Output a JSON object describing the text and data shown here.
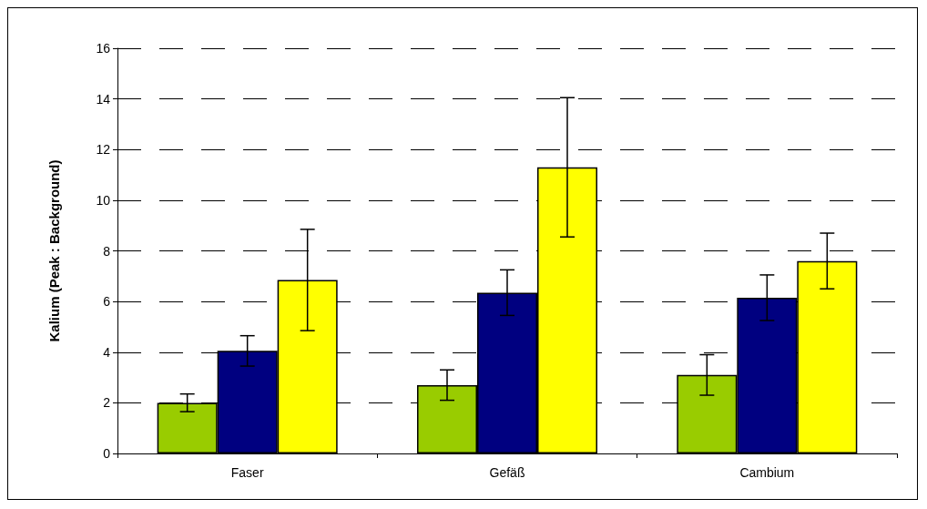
{
  "chart_data": {
    "type": "bar",
    "ylabel": "Kalium (Peak : Background)",
    "categories": [
      "Faser",
      "Gefäß",
      "Cambium"
    ],
    "series": [
      {
        "color": "#99cc00",
        "values": [
          2.0,
          2.7,
          3.1
        ],
        "errors": [
          0.35,
          0.6,
          0.8
        ]
      },
      {
        "color": "#000080",
        "values": [
          4.05,
          6.35,
          6.15
        ],
        "errors": [
          0.6,
          0.9,
          0.9
        ]
      },
      {
        "color": "#ffff00",
        "values": [
          6.85,
          11.3,
          7.6
        ],
        "errors": [
          2.0,
          2.75,
          1.1
        ]
      }
    ],
    "ylim": [
      0,
      16
    ],
    "yticks": [
      0,
      2,
      4,
      6,
      8,
      10,
      12,
      14,
      16
    ],
    "grid": "y"
  }
}
